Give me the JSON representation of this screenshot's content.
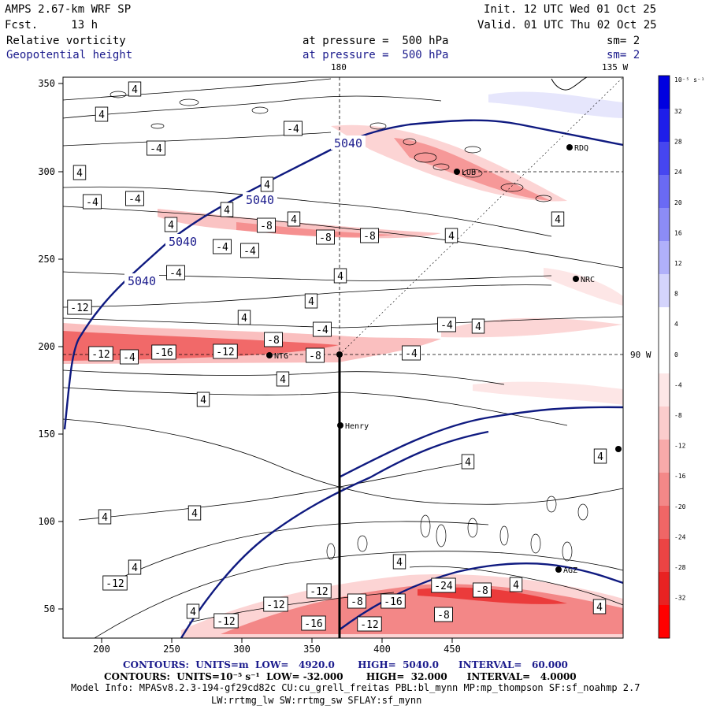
{
  "header": {
    "model": "AMPS 2.67-km WRF SP",
    "forecast": "Fcst.     13 h",
    "init": "Init. 12 UTC Wed 01 Oct 25",
    "valid": "Valid. 01 UTC Thu 02 Oct 25",
    "field1_name": "Relative vorticity",
    "field1_level": "at pressure =  500 hPa",
    "field1_sm": "sm= 2",
    "field2_name": "Geopotential height",
    "field2_level": "at pressure =  500 hPa",
    "field2_sm": "sm= 2"
  },
  "map": {
    "meridian_top_label": "180",
    "meridian_135_label": "135 W",
    "meridian_90_label": "90 W",
    "x_ticks": [
      "200",
      "250",
      "300",
      "350",
      "400",
      "450"
    ],
    "y_ticks": [
      "350",
      "300",
      "250",
      "200",
      "150",
      "100",
      "50"
    ],
    "stations": [
      "RDQ",
      "LUB",
      "NRC",
      "NTG",
      "Henry",
      "AGZ"
    ],
    "height_labels": [
      "5040",
      "5040",
      "5040",
      "5040"
    ],
    "vort_labels": [
      "4",
      "4",
      "-4",
      "4",
      "-4",
      "-4",
      "4",
      "4",
      "-4",
      "-8",
      "-8",
      "-8",
      "4",
      "-4",
      "-4",
      "4",
      "4",
      "4",
      "4",
      "-4",
      "-4",
      "-4",
      "4",
      "-12",
      "-8",
      "-12",
      "-16",
      "-12",
      "-8",
      "-4",
      "-4",
      "4",
      "4",
      "4",
      "4",
      "4",
      "4",
      "4",
      "4",
      "-12",
      "-12",
      "-12",
      "-16",
      "-24",
      "-8",
      "-16",
      "-8",
      "-12",
      "-12",
      "-8",
      "4",
      "4",
      "4",
      "4",
      "4"
    ]
  },
  "colorbar": {
    "unit": "10⁻⁵ s⁻¹",
    "labels": [
      "32",
      "28",
      "24",
      "20",
      "16",
      "12",
      "8",
      "4",
      "0",
      "-4",
      "-8",
      "-12",
      "-16",
      "-20",
      "-24",
      "-28",
      "-32"
    ],
    "colors": [
      "#0000e0",
      "#1e1eea",
      "#4646f0",
      "#6a6af4",
      "#8c8cf6",
      "#b0b0fa",
      "#d4d4fc",
      "#ffffff",
      "#ffffff",
      "#fde6e6",
      "#fbcccc",
      "#f8aaaa",
      "#f48888",
      "#f06666",
      "#ec4444",
      "#e82222",
      "#ff0000"
    ]
  },
  "footer": {
    "contours1": "CONTOURS:  UNITS=m  LOW=   4920.0       HIGH=  5040.0      INTERVAL=   60.000",
    "contours2": "CONTOURS:  UNITS=10⁻⁵ s⁻¹  LOW= -32.000       HIGH=  32.000      INTERVAL=   4.0000",
    "model_info": "Model Info: MPASv8.2.3-194-gf29cd82c CU:cu_grell_freitas PBL:bl_mynn MP:mp_thompson SF:sf_noahmp 2.7",
    "model_info2": "LW:rrtmg_lw SW:rrtmg_sw SFLAY:sf_mynn"
  }
}
